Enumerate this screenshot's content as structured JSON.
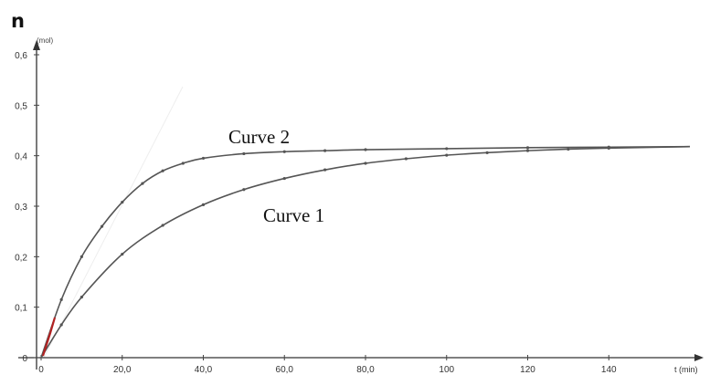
{
  "chart_data": {
    "type": "line",
    "ylabel": "n",
    "yunit": "(mol)",
    "xlabel": "t (min)",
    "xlim": [
      0,
      160
    ],
    "ylim": [
      0,
      0.6
    ],
    "x_ticks": [
      {
        "value": 0,
        "label": "0"
      },
      {
        "value": 20,
        "label": "20,0"
      },
      {
        "value": 40,
        "label": "40,0"
      },
      {
        "value": 60,
        "label": "60,0"
      },
      {
        "value": 80,
        "label": "80,0"
      },
      {
        "value": 100,
        "label": "100"
      },
      {
        "value": 120,
        "label": "120"
      },
      {
        "value": 140,
        "label": "140"
      }
    ],
    "y_ticks": [
      {
        "value": 0,
        "label": "0"
      },
      {
        "value": 0.1,
        "label": "0,1"
      },
      {
        "value": 0.2,
        "label": "0,2"
      },
      {
        "value": 0.3,
        "label": "0,3"
      },
      {
        "value": 0.4,
        "label": "0,4"
      },
      {
        "value": 0.5,
        "label": "0,5"
      },
      {
        "value": 0.6,
        "label": "0,6"
      }
    ],
    "series": [
      {
        "name": "Curve 1",
        "x": [
          0,
          5,
          10,
          20,
          30,
          40,
          50,
          60,
          70,
          80,
          90,
          100,
          110,
          120,
          130,
          140,
          160
        ],
        "y": [
          0,
          0.065,
          0.12,
          0.205,
          0.262,
          0.303,
          0.333,
          0.355,
          0.372,
          0.385,
          0.394,
          0.401,
          0.406,
          0.41,
          0.413,
          0.415,
          0.418
        ]
      },
      {
        "name": "Curve 2",
        "x": [
          0,
          5,
          10,
          15,
          20,
          25,
          30,
          35,
          40,
          50,
          60,
          70,
          80,
          100,
          120,
          140,
          160
        ],
        "y": [
          0,
          0.115,
          0.2,
          0.26,
          0.308,
          0.345,
          0.37,
          0.385,
          0.395,
          0.404,
          0.408,
          0.41,
          0.412,
          0.414,
          0.416,
          0.417,
          0.418
        ]
      }
    ]
  }
}
